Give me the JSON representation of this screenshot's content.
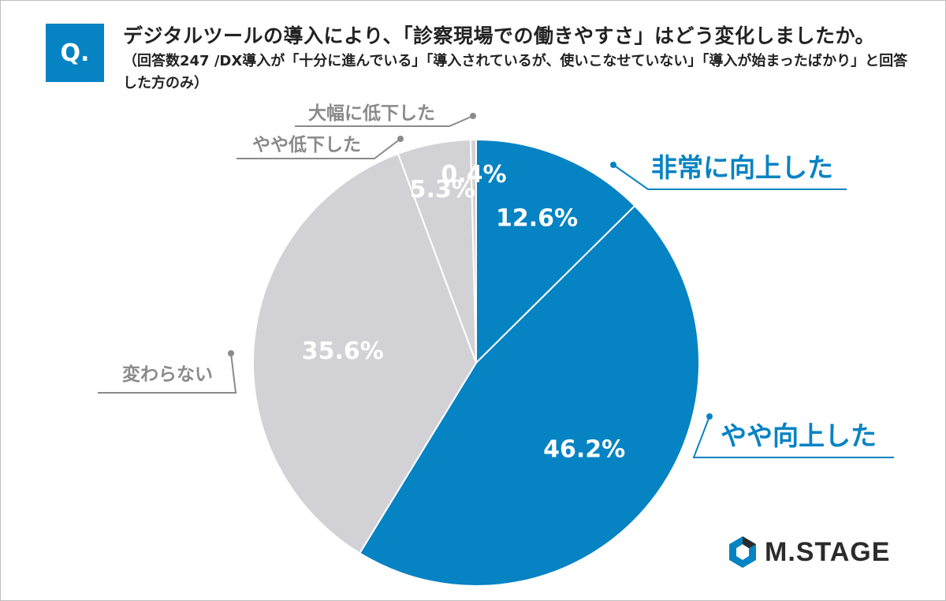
{
  "header": {
    "badge": "Q.",
    "title": "デジタルツールの導入により、「診察現場での働きやすさ」はどう変化しましたか。",
    "subtitle": "（回答数247 /DX導入が「十分に進んでいる」「導入されているが、使いこなせていない」「導入が始まったばかり」と回答した方のみ）"
  },
  "colors": {
    "accent": "#0683c3",
    "gray": "#d2d1d5",
    "label_gray": "#8a8a8a",
    "divider": "#ffffff"
  },
  "chart_data": {
    "type": "pie",
    "start_angle_deg": 0,
    "direction": "clockwise",
    "slices": [
      {
        "label": "非常に向上した",
        "value": 12.6,
        "display": "12.6%",
        "color": "#0683c3"
      },
      {
        "label": "やや向上した",
        "value": 46.2,
        "display": "46.2%",
        "color": "#0683c3"
      },
      {
        "label": "変わらない",
        "value": 35.6,
        "display": "35.6%",
        "color": "#d2d1d5"
      },
      {
        "label": "やや低下した",
        "value": 5.3,
        "display": "5.3%",
        "color": "#d2d1d5"
      },
      {
        "label": "大幅に低下した",
        "value": 0.4,
        "display": "0.4%",
        "color": "#d2d1d5"
      }
    ]
  },
  "logo": {
    "text": "M.STAGE"
  }
}
